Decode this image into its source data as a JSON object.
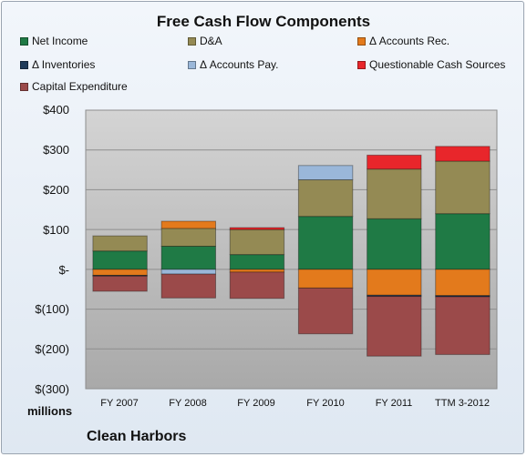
{
  "chart_data": {
    "type": "bar",
    "stacked": true,
    "title": "Free Cash Flow Components",
    "categories": [
      "FY 2007",
      "FY 2008",
      "FY 2009",
      "FY 2010",
      "FY 2011",
      "TTM 3-2012"
    ],
    "units_label": "millions",
    "company_label": "Clean Harbors",
    "y_ticks": [
      "$400",
      "$300",
      "$200",
      "$100",
      "$-",
      "$(100)",
      "$(200)",
      "$(300)"
    ],
    "ylim": [
      -300,
      400
    ],
    "grid": true,
    "legend_position": "top",
    "series": [
      {
        "name": "Net Income",
        "color": "#1f7a45",
        "values": [
          46,
          58,
          37,
          133,
          127,
          140
        ]
      },
      {
        "name": "D&A",
        "color": "#948a54",
        "values": [
          38,
          45,
          63,
          92,
          125,
          132
        ]
      },
      {
        "name": "Δ Accounts Rec.",
        "color": "#e37a1c",
        "values": [
          -15,
          18,
          -7,
          -47,
          -65,
          -66
        ]
      },
      {
        "name": "Δ Inventories",
        "color": "#1f3b5a",
        "values": [
          -2,
          0,
          0,
          0,
          -3,
          -3
        ]
      },
      {
        "name": "Δ Accounts Pay.",
        "color": "#9ab7d9",
        "values": [
          0,
          -12,
          0,
          36,
          0,
          0
        ]
      },
      {
        "name": "Questionable Cash Sources",
        "color": "#e8262b",
        "values": [
          0,
          0,
          5,
          0,
          35,
          37
        ]
      },
      {
        "name": "Capital Expenditure",
        "color": "#9b4a4a",
        "values": [
          -38,
          -60,
          -66,
          -115,
          -150,
          -145
        ]
      }
    ]
  }
}
